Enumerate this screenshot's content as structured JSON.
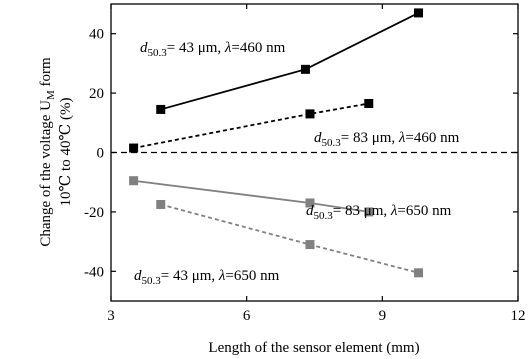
{
  "chart_data": {
    "type": "line",
    "xlabel": "Length of the sensor element (mm)",
    "ylabel_line1": "Change of the voltage U",
    "ylabel_sub": "M",
    "ylabel_line1_suffix": " form",
    "ylabel_line2": "10℃  to 40℃  (%)",
    "xlim": [
      3,
      12
    ],
    "ylim": [
      -50,
      50
    ],
    "xticks": [
      3,
      6,
      9,
      12
    ],
    "yticks": [
      40,
      20,
      0,
      -20,
      -40
    ],
    "reference_line": {
      "y": 0,
      "style": "dashed"
    },
    "series": [
      {
        "color": "#000000",
        "dashed": false,
        "points": [
          {
            "x": 4.1,
            "y": 14.5
          },
          {
            "x": 7.3,
            "y": 28
          },
          {
            "x": 9.8,
            "y": 47
          }
        ],
        "label": {
          "d": "d",
          "sub": "50.3",
          "value": "= 43 μm, ",
          "lambda": "λ",
          "lambda_value": "=460 nm"
        }
      },
      {
        "color": "#000000",
        "dashed": true,
        "points": [
          {
            "x": 3.5,
            "y": 1.5
          },
          {
            "x": 7.4,
            "y": 13
          },
          {
            "x": 8.7,
            "y": 16.5
          }
        ],
        "label": {
          "d": "d",
          "sub": "50.3",
          "value": "= 83 μm, ",
          "lambda": "λ",
          "lambda_value": "=460 nm"
        }
      },
      {
        "color": "#808080",
        "dashed": false,
        "points": [
          {
            "x": 3.5,
            "y": -9.5
          },
          {
            "x": 7.4,
            "y": -17
          },
          {
            "x": 8.7,
            "y": -20
          }
        ],
        "label": {
          "d": "d",
          "sub": "50.3",
          "value": "= 83 μm, ",
          "lambda": "λ",
          "lambda_value": "=650 nm"
        }
      },
      {
        "color": "#808080",
        "dashed": true,
        "points": [
          {
            "x": 4.1,
            "y": -17.5
          },
          {
            "x": 7.4,
            "y": -31
          },
          {
            "x": 9.8,
            "y": -40.5
          }
        ],
        "label": {
          "d": "d",
          "sub": "50.3",
          "value": "= 43 μm, ",
          "lambda": "λ",
          "lambda_value": "=650 nm"
        }
      }
    ]
  }
}
